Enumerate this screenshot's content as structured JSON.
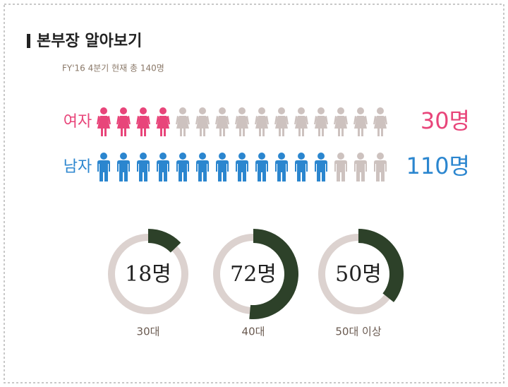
{
  "chart_data": [
    {
      "type": "pictogram",
      "title": "본부장 알아보기",
      "subtitle": "FY'16 4분기 현재 총 140명",
      "categories": [
        "여자",
        "남자"
      ],
      "values": [
        30,
        110
      ],
      "value_labels": [
        "30명",
        "110명"
      ],
      "colors": [
        "#e8457a",
        "#2b86cf"
      ],
      "empty_color": "#cdc2bf",
      "icons_per_row": 15,
      "filled_icons": [
        4,
        12
      ]
    },
    {
      "type": "donut",
      "categories": [
        "30대",
        "40대",
        "50대 이상"
      ],
      "values": [
        18,
        72,
        50
      ],
      "value_labels": [
        "18명",
        "72명",
        "50명"
      ],
      "ylim": [
        0,
        140
      ],
      "color": "#2d4129",
      "track_color": "#dcd2cf"
    }
  ]
}
